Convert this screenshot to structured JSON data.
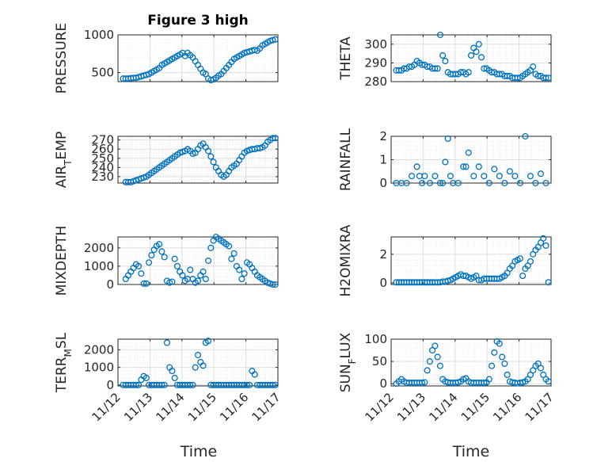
{
  "chart_data": [
    {
      "type": "scatter",
      "title": "Figure 3 high",
      "ylabel": "PRESSURE",
      "ylim": [
        380,
        1000
      ],
      "yticks": [
        500,
        1000
      ],
      "ytick_labels": [
        "500",
        "1000"
      ],
      "x": [
        0.2,
        0.3,
        0.4,
        0.5,
        0.6,
        0.7,
        0.8,
        0.9,
        1.0,
        1.1,
        1.2,
        1.3,
        1.4,
        1.5,
        1.6,
        1.7,
        1.8,
        1.9,
        2.0,
        2.1,
        2.2,
        2.3,
        2.4,
        2.5,
        2.6,
        2.7,
        2.8,
        2.9,
        3.0,
        3.1,
        3.2,
        3.3,
        3.4,
        3.5,
        3.6,
        3.7,
        3.8,
        3.9,
        4.0,
        4.1,
        4.2,
        4.3,
        4.4,
        4.5,
        4.6,
        4.7,
        4.8,
        4.9,
        5.0,
        5.1,
        5.2,
        5.3,
        5.4,
        5.5,
        5.6,
        5.7,
        5.8,
        5.9,
        6.0,
        6.1
      ],
      "y": [
        420,
        420,
        420,
        425,
        430,
        430,
        440,
        450,
        460,
        470,
        480,
        500,
        520,
        540,
        560,
        600,
        620,
        640,
        660,
        680,
        700,
        720,
        740,
        760,
        720,
        760,
        730,
        700,
        650,
        600,
        550,
        500,
        480,
        420,
        400,
        410,
        430,
        460,
        480,
        520,
        560,
        600,
        640,
        680,
        700,
        720,
        740,
        760,
        770,
        780,
        790,
        800,
        790,
        820,
        860,
        880,
        900,
        920,
        930,
        940
      ]
    },
    {
      "type": "scatter",
      "ylabel": "THETA",
      "ylim": [
        280,
        305
      ],
      "yticks": [
        280,
        290,
        300
      ],
      "ytick_labels": [
        "280",
        "290",
        "300"
      ],
      "x": [
        0.2,
        0.3,
        0.4,
        0.5,
        0.6,
        0.7,
        0.8,
        0.9,
        1.0,
        1.1,
        1.2,
        1.3,
        1.4,
        1.5,
        1.6,
        1.7,
        1.8,
        1.9,
        2.0,
        2.1,
        2.2,
        2.3,
        2.4,
        2.5,
        2.6,
        2.7,
        2.8,
        2.9,
        3.0,
        3.1,
        3.2,
        3.3,
        3.4,
        3.5,
        3.6,
        3.7,
        3.8,
        3.9,
        4.0,
        4.1,
        4.2,
        4.3,
        4.4,
        4.5,
        4.6,
        4.7,
        4.8,
        4.9,
        5.0,
        5.1,
        5.2,
        5.3,
        5.4,
        5.5,
        5.6,
        5.7,
        5.8,
        5.9,
        6.0,
        6.1
      ],
      "y": [
        286,
        286,
        286,
        287,
        287,
        288,
        288,
        289,
        291,
        290,
        289,
        289,
        288,
        288,
        287,
        287,
        287,
        305,
        294,
        291,
        285,
        284,
        284,
        284,
        284,
        285,
        285,
        284,
        285,
        294,
        298,
        296,
        300,
        293,
        287,
        287,
        286,
        285,
        285,
        284,
        284,
        284,
        283,
        283,
        283,
        282,
        282,
        282,
        282,
        283,
        284,
        285,
        286,
        288,
        284,
        283,
        283,
        282,
        282,
        282
      ]
    },
    {
      "type": "scatter",
      "ylabel": "AIR_TEMP",
      "ylim": [
        223,
        274
      ],
      "yticks": [
        230,
        240,
        250,
        260,
        270
      ],
      "ytick_labels": [
        "230",
        "240",
        "250",
        "260",
        "270"
      ],
      "x": [
        0.3,
        0.4,
        0.5,
        0.6,
        0.7,
        0.8,
        0.9,
        1.0,
        1.1,
        1.2,
        1.3,
        1.4,
        1.5,
        1.6,
        1.7,
        1.8,
        1.9,
        2.0,
        2.1,
        2.2,
        2.3,
        2.4,
        2.5,
        2.6,
        2.7,
        2.8,
        2.9,
        3.0,
        3.1,
        3.2,
        3.3,
        3.4,
        3.5,
        3.6,
        3.7,
        3.8,
        3.9,
        4.0,
        4.1,
        4.2,
        4.3,
        4.4,
        4.5,
        4.6,
        4.7,
        4.8,
        4.9,
        5.0,
        5.1,
        5.2,
        5.3,
        5.4,
        5.5,
        5.6,
        5.7,
        5.8,
        5.9,
        6.0,
        6.1
      ],
      "y": [
        224,
        224,
        224,
        225,
        226,
        227,
        228,
        229,
        230,
        232,
        234,
        236,
        238,
        240,
        242,
        244,
        246,
        248,
        250,
        252,
        254,
        256,
        257,
        258,
        260,
        258,
        255,
        256,
        260,
        264,
        266,
        262,
        258,
        252,
        246,
        240,
        236,
        232,
        230,
        232,
        236,
        240,
        242,
        244,
        248,
        252,
        256,
        258,
        259,
        260,
        260,
        261,
        261,
        262,
        264,
        268,
        270,
        272,
        272
      ]
    },
    {
      "type": "scatter",
      "ylabel": "RAINFALL",
      "ylim": [
        0,
        2
      ],
      "yticks": [
        0,
        1,
        2
      ],
      "ytick_labels": [
        "0",
        "1",
        "2"
      ],
      "x": [
        0.2,
        0.4,
        0.6,
        0.8,
        1.0,
        1.1,
        1.2,
        1.3,
        1.5,
        1.7,
        1.9,
        2.0,
        2.1,
        2.2,
        2.3,
        2.4,
        2.6,
        2.8,
        2.9,
        3.0,
        3.2,
        3.4,
        3.6,
        3.8,
        4.0,
        4.2,
        4.4,
        4.6,
        4.8,
        5.0,
        5.2,
        5.4,
        5.6,
        5.8,
        6.0
      ],
      "y": [
        0,
        0,
        0,
        0.3,
        0.7,
        0.3,
        0,
        0.3,
        0,
        0.3,
        0,
        0,
        0.9,
        1.9,
        0.3,
        0,
        0,
        0.7,
        0.7,
        1.3,
        0.3,
        0.7,
        0.3,
        0,
        0.6,
        0.3,
        0,
        0.5,
        0.3,
        0,
        2.0,
        0.3,
        0,
        0.4,
        0
      ]
    },
    {
      "type": "scatter",
      "ylabel": "MIXDEPTH",
      "ylim": [
        0,
        2600
      ],
      "yticks": [
        0,
        1000,
        2000
      ],
      "ytick_labels": [
        "0",
        "1000",
        "2000"
      ],
      "x": [
        0.3,
        0.4,
        0.5,
        0.6,
        0.7,
        0.8,
        0.9,
        1.0,
        1.1,
        1.2,
        1.3,
        1.4,
        1.5,
        1.6,
        1.7,
        1.8,
        1.9,
        2.0,
        2.1,
        2.2,
        2.3,
        2.4,
        2.5,
        2.6,
        2.7,
        2.8,
        2.9,
        3.0,
        3.1,
        3.2,
        3.3,
        3.4,
        3.5,
        3.6,
        3.7,
        3.8,
        3.9,
        4.0,
        4.1,
        4.2,
        4.3,
        4.4,
        4.5,
        4.6,
        4.7,
        4.8,
        4.9,
        5.0,
        5.1,
        5.2,
        5.3,
        5.4,
        5.5,
        5.6,
        5.7,
        5.8,
        5.9,
        6.0,
        6.1
      ],
      "y": [
        300,
        500,
        700,
        900,
        1100,
        1000,
        600,
        50,
        50,
        1200,
        1600,
        1900,
        2100,
        2200,
        1800,
        1500,
        200,
        100,
        150,
        1400,
        1000,
        700,
        500,
        200,
        300,
        800,
        300,
        100,
        200,
        500,
        700,
        300,
        1300,
        2000,
        2400,
        2600,
        2500,
        2400,
        2300,
        2200,
        2100,
        1400,
        1700,
        1000,
        800,
        300,
        600,
        1200,
        1100,
        900,
        700,
        500,
        400,
        300,
        200,
        100,
        50,
        0,
        0
      ]
    },
    {
      "type": "scatter",
      "ylabel": "H2OMIXRA",
      "ylim": [
        -0.1,
        3.2
      ],
      "yticks": [
        0,
        2
      ],
      "ytick_labels": [
        "0",
        "2"
      ],
      "x": [
        0.2,
        0.3,
        0.4,
        0.5,
        0.6,
        0.7,
        0.8,
        0.9,
        1.0,
        1.1,
        1.2,
        1.3,
        1.4,
        1.5,
        1.6,
        1.7,
        1.8,
        1.9,
        2.0,
        2.1,
        2.2,
        2.3,
        2.4,
        2.5,
        2.6,
        2.7,
        2.8,
        2.9,
        3.0,
        3.1,
        3.2,
        3.3,
        3.4,
        3.5,
        3.6,
        3.7,
        3.8,
        3.9,
        4.0,
        4.1,
        4.2,
        4.3,
        4.4,
        4.5,
        4.6,
        4.7,
        4.8,
        4.9,
        5.0,
        5.1,
        5.2,
        5.3,
        5.4,
        5.5,
        5.6,
        5.7,
        5.8,
        5.9,
        6.0,
        6.1
      ],
      "y": [
        0.05,
        0.05,
        0.05,
        0.05,
        0.05,
        0.05,
        0.05,
        0.05,
        0.05,
        0.05,
        0.05,
        0.05,
        0.05,
        0.05,
        0.05,
        0.05,
        0.05,
        0.05,
        0.1,
        0.1,
        0.15,
        0.2,
        0.3,
        0.4,
        0.5,
        0.6,
        0.5,
        0.5,
        0.4,
        0.3,
        0.4,
        0.5,
        0.2,
        0.2,
        0.3,
        0.3,
        0.3,
        0.3,
        0.3,
        0.3,
        0.3,
        0.4,
        0.5,
        0.7,
        1.0,
        1.2,
        1.5,
        1.6,
        1.7,
        0.5,
        1.0,
        1.2,
        1.5,
        2.0,
        2.3,
        2.5,
        2.8,
        3.1,
        2.6,
        0.05
      ]
    },
    {
      "type": "scatter",
      "ylabel": "TERR_MSL",
      "ylim": [
        -50,
        2600
      ],
      "yticks": [
        0,
        1000,
        2000
      ],
      "ytick_labels": [
        "0",
        "1000",
        "2000"
      ],
      "x": [
        0.2,
        0.3,
        0.4,
        0.5,
        0.6,
        0.7,
        0.8,
        0.9,
        1.0,
        1.1,
        1.2,
        1.3,
        1.4,
        1.5,
        1.6,
        1.7,
        1.8,
        1.9,
        2.0,
        2.1,
        2.2,
        2.3,
        2.4,
        2.5,
        2.6,
        2.7,
        2.8,
        2.9,
        3.0,
        3.1,
        3.2,
        3.3,
        3.4,
        3.5,
        3.6,
        3.7,
        3.8,
        3.9,
        4.0,
        4.1,
        4.2,
        4.3,
        4.4,
        4.5,
        4.6,
        4.7,
        4.8,
        4.9,
        5.0,
        5.1,
        5.2,
        5.3,
        5.4,
        5.5,
        5.6,
        5.7,
        5.8,
        5.9,
        6.0,
        6.1
      ],
      "y": [
        0,
        0,
        0,
        0,
        0,
        0,
        0,
        300,
        500,
        400,
        0,
        0,
        0,
        0,
        0,
        0,
        0,
        2400,
        1000,
        800,
        400,
        0,
        0,
        0,
        0,
        0,
        0,
        0,
        1000,
        1700,
        1300,
        1100,
        2400,
        2500,
        0,
        0,
        0,
        0,
        0,
        0,
        0,
        0,
        0,
        0,
        0,
        0,
        0,
        0,
        0,
        0,
        800,
        600,
        0,
        0,
        0,
        0,
        0,
        0,
        0,
        0
      ]
    },
    {
      "type": "scatter",
      "ylabel": "SUN_FLUX",
      "ylim": [
        -5,
        100
      ],
      "yticks": [
        0,
        50,
        100
      ],
      "ytick_labels": [
        "0",
        "50",
        "100"
      ],
      "x": [
        0.2,
        0.3,
        0.4,
        0.5,
        0.6,
        0.7,
        0.8,
        0.9,
        1.0,
        1.1,
        1.2,
        1.3,
        1.4,
        1.5,
        1.6,
        1.7,
        1.8,
        1.9,
        2.0,
        2.1,
        2.2,
        2.3,
        2.4,
        2.5,
        2.6,
        2.7,
        2.8,
        2.9,
        3.0,
        3.1,
        3.2,
        3.3,
        3.4,
        3.5,
        3.6,
        3.7,
        3.8,
        3.9,
        4.0,
        4.1,
        4.2,
        4.3,
        4.4,
        4.5,
        4.6,
        4.7,
        4.8,
        4.9,
        5.0,
        5.1,
        5.2,
        5.3,
        5.4,
        5.5,
        5.6,
        5.7,
        5.8,
        5.9,
        6.0,
        6.1
      ],
      "y": [
        0,
        5,
        10,
        5,
        2,
        2,
        2,
        2,
        2,
        2,
        2,
        3,
        30,
        50,
        75,
        85,
        60,
        40,
        10,
        5,
        3,
        2,
        2,
        2,
        3,
        5,
        10,
        12,
        5,
        2,
        2,
        2,
        2,
        2,
        2,
        3,
        10,
        40,
        70,
        95,
        90,
        60,
        45,
        20,
        5,
        3,
        2,
        1,
        2,
        3,
        5,
        10,
        20,
        30,
        40,
        45,
        35,
        20,
        10,
        5
      ]
    }
  ],
  "x_tick_labels": [
    "11/12",
    "11/13",
    "11/14",
    "11/15",
    "11/16",
    "11/17"
  ],
  "x_axis_label": "Time",
  "marker_color": "#0072BD"
}
